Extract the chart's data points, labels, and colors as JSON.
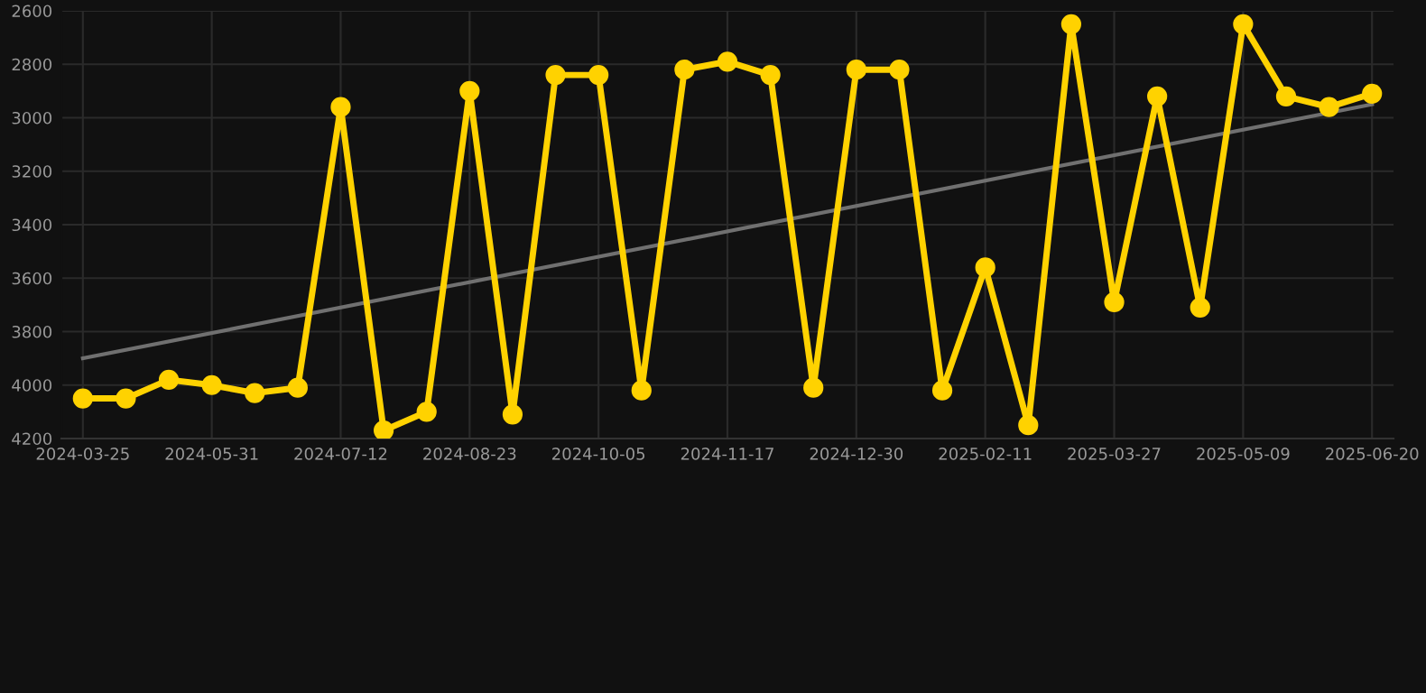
{
  "chart_data": {
    "type": "line",
    "categories": [
      "2024-03-25",
      null,
      null,
      "2024-05-31",
      null,
      null,
      "2024-07-12",
      null,
      null,
      "2024-08-23",
      null,
      null,
      "2024-10-05",
      null,
      null,
      "2024-11-17",
      null,
      null,
      "2024-12-30",
      null,
      null,
      "2025-02-11",
      null,
      null,
      "2025-03-27",
      null,
      null,
      "2025-05-09",
      null,
      null,
      "2025-06-20"
    ],
    "series": [
      {
        "color": "#ffd200",
        "marker": "circle",
        "values": [
          4050,
          4050,
          3980,
          4000,
          4030,
          4010,
          2960,
          4170,
          4100,
          2900,
          4110,
          2840,
          2840,
          4020,
          2820,
          2790,
          2840,
          4010,
          2820,
          2820,
          4020,
          3560,
          4150,
          2650,
          3690,
          2920,
          3710,
          2650,
          2920,
          2960,
          2910
        ]
      },
      {
        "color": "#707070",
        "marker": "none",
        "values": [
          3900,
          null,
          null,
          null,
          null,
          null,
          null,
          null,
          null,
          null,
          null,
          null,
          null,
          null,
          null,
          null,
          null,
          null,
          null,
          null,
          null,
          null,
          null,
          null,
          null,
          null,
          null,
          null,
          null,
          null,
          2950
        ]
      }
    ],
    "ylim": [
      4200,
      2600
    ],
    "yticks": [
      2600,
      2800,
      3000,
      3200,
      3400,
      3600,
      3800,
      4000,
      4200
    ],
    "grid": true,
    "line_style": "solid"
  }
}
